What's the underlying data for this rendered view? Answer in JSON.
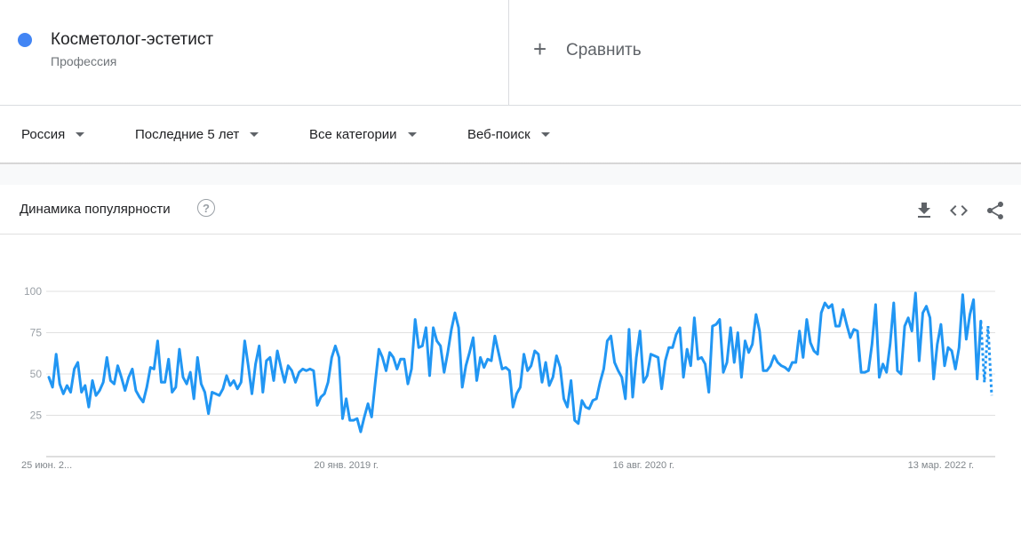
{
  "term": {
    "name": "Косметолог-эстетист",
    "type": "Профессия",
    "color": "#4285f4"
  },
  "compare": {
    "label": "Сравнить"
  },
  "filters": [
    {
      "label": "Россия"
    },
    {
      "label": "Последние 5 лет"
    },
    {
      "label": "Все категории"
    },
    {
      "label": "Веб-поиск"
    }
  ],
  "card": {
    "title": "Динамика популярности",
    "help_icon": "question-circle-icon",
    "tools": [
      "download-icon",
      "embed-code-icon",
      "share-icon"
    ]
  },
  "chart_data": {
    "type": "line",
    "color": "#2196f3",
    "ylim": [
      0,
      100
    ],
    "yticks": [
      25,
      50,
      75,
      100
    ],
    "grid": true,
    "x_labels": [
      {
        "text": "25 июн. 2...",
        "index": 0
      },
      {
        "text": "20 янв. 2019 г.",
        "index": 82
      },
      {
        "text": "16 авг. 2020 г.",
        "index": 164
      },
      {
        "text": "13 мар. 2022 г.",
        "index": 246
      }
    ],
    "partial_from_index": 257,
    "series": [
      {
        "values": [
          48,
          42,
          62,
          44,
          38,
          43,
          39,
          53,
          57,
          39,
          43,
          30,
          46,
          37,
          40,
          45,
          60,
          46,
          44,
          55,
          48,
          40,
          48,
          53,
          40,
          36,
          33,
          42,
          54,
          53,
          70,
          45,
          45,
          59,
          39,
          42,
          65,
          48,
          44,
          51,
          35,
          60,
          44,
          39,
          26,
          39,
          38,
          37,
          41,
          49,
          43,
          46,
          41,
          45,
          70,
          55,
          38,
          56,
          67,
          39,
          58,
          60,
          46,
          64,
          54,
          45,
          55,
          52,
          45,
          51,
          53,
          52,
          53,
          52,
          31,
          36,
          38,
          45,
          60,
          67,
          60,
          23,
          35,
          22,
          22,
          23,
          15,
          24,
          32,
          24,
          45,
          65,
          60,
          52,
          63,
          60,
          53,
          59,
          59,
          44,
          53,
          83,
          66,
          67,
          78,
          49,
          78,
          70,
          67,
          51,
          63,
          77,
          87,
          78,
          42,
          55,
          63,
          72,
          46,
          60,
          54,
          59,
          58,
          73,
          63,
          53,
          54,
          52,
          30,
          38,
          42,
          62,
          52,
          55,
          64,
          62,
          45,
          57,
          43,
          48,
          61,
          54,
          35,
          30,
          46,
          22,
          20,
          34,
          30,
          29,
          34,
          35,
          45,
          53,
          70,
          73,
          57,
          52,
          48,
          35,
          77,
          36,
          60,
          76,
          45,
          49,
          62,
          61,
          60,
          41,
          58,
          66,
          66,
          74,
          78,
          48,
          65,
          55,
          84,
          59,
          60,
          56,
          39,
          79,
          80,
          83,
          51,
          57,
          78,
          57,
          75,
          48,
          70,
          63,
          68,
          86,
          76,
          52,
          52,
          55,
          61,
          57,
          55,
          54,
          52,
          57,
          57,
          76,
          60,
          83,
          69,
          64,
          62,
          87,
          93,
          90,
          92,
          79,
          79,
          89,
          80,
          72,
          77,
          76,
          51,
          51,
          52,
          68,
          92,
          48,
          56,
          51,
          68,
          93,
          52,
          50,
          79,
          84,
          76,
          99,
          58,
          87,
          91,
          84,
          47,
          68,
          80,
          55,
          66,
          64,
          53,
          66,
          98,
          71,
          86,
          95,
          47,
          82,
          45,
          79,
          37
        ]
      }
    ]
  }
}
